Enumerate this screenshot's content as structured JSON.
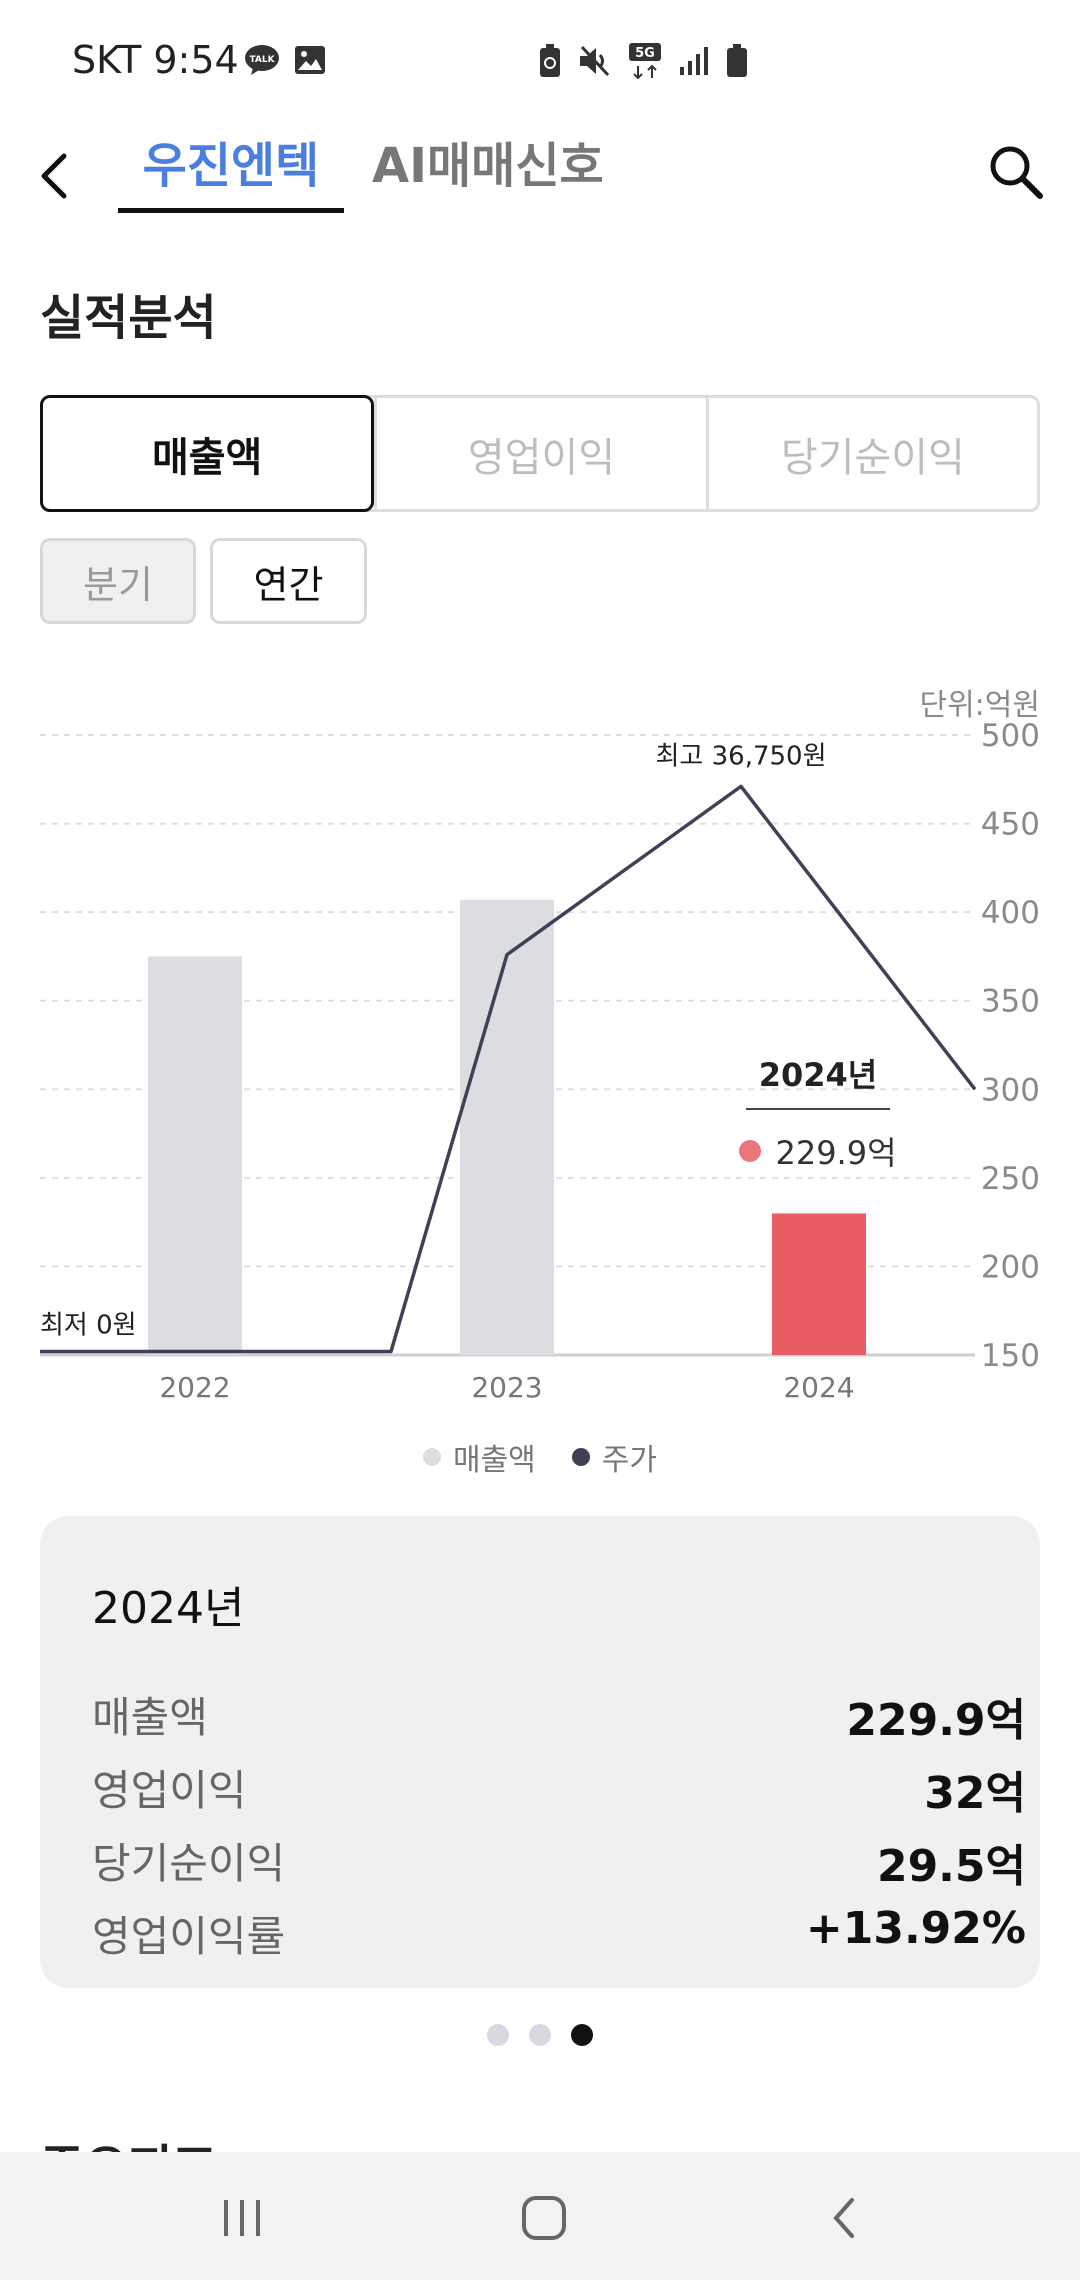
{
  "status_bar": {
    "carrier_time": "SKT 9:54",
    "network": "5G"
  },
  "header": {
    "tabs": [
      {
        "label": "우진엔텍",
        "active": true
      },
      {
        "label": "AI매매신호",
        "active": false
      }
    ],
    "accent_color": "#4a7ee0"
  },
  "section": {
    "title": "실적분석",
    "next_title": "주요지표"
  },
  "metric_tabs": [
    {
      "label": "매출액",
      "selected": true
    },
    {
      "label": "영업이익",
      "selected": false
    },
    {
      "label": "당기순이익",
      "selected": false
    }
  ],
  "period_tabs": [
    {
      "label": "분기",
      "selected": false
    },
    {
      "label": "연간",
      "selected": true
    }
  ],
  "chart_data": {
    "type": "bar+line",
    "unit_label": "단위:억원",
    "categories": [
      "2022",
      "2023",
      "2024"
    ],
    "y_ticks": [
      "500",
      "450",
      "400",
      "350",
      "300",
      "250",
      "200",
      "150"
    ],
    "ylim": [
      150,
      500
    ],
    "grid": true,
    "series": [
      {
        "name": "매출액",
        "type": "bar",
        "values": [
          375,
          407,
          229.9
        ],
        "color": "#dcdde1",
        "highlight_color": "#e85d62",
        "highlight_index": 2
      },
      {
        "name": "주가",
        "type": "line",
        "color": "#3f4257",
        "points": [
          {
            "x": "2022",
            "y": 152
          },
          {
            "x": "2022.5",
            "y": 152
          },
          {
            "x": "2023",
            "y": 376
          },
          {
            "x": "2023.75",
            "y": 471
          },
          {
            "x": "2024.5",
            "y": 300
          }
        ]
      }
    ],
    "annotations": {
      "max_label": "최고 36,750원",
      "min_label": "최저 0원"
    },
    "tooltip": {
      "title": "2024년",
      "value": "229.9억"
    },
    "legend_position": "bottom-center"
  },
  "summary": {
    "year": "2024년",
    "rows": [
      {
        "label": "매출액",
        "value": "229.9억"
      },
      {
        "label": "영업이익",
        "value": "32억"
      },
      {
        "label": "당기순이익",
        "value": "29.5억"
      },
      {
        "label": "영업이익률",
        "value": "+13.92%"
      }
    ]
  },
  "pager": {
    "count": 3,
    "active_index": 2
  }
}
